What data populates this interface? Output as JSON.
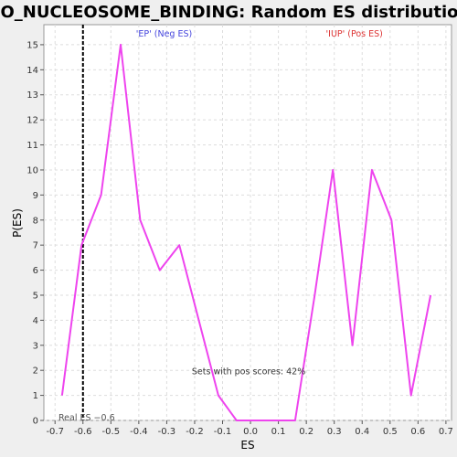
{
  "chart_data": {
    "type": "line",
    "title": "GO_NUCLEOSOME_BINDING: Random ES distribution",
    "xlabel": "ES",
    "ylabel": "P(ES)",
    "xlim": [
      -0.74,
      0.72
    ],
    "ylim": [
      0,
      15.8
    ],
    "x_ticks": [
      -0.7,
      -0.6,
      -0.5,
      -0.4,
      -0.3,
      -0.2,
      -0.1,
      0.0,
      0.1,
      0.2,
      0.3,
      0.4,
      0.5,
      0.6,
      0.7
    ],
    "x_tick_labels": [
      "-0.7",
      "-0.6",
      "-0.5",
      "-0.4",
      "-0.3",
      "-0.2",
      "-0.1",
      "0.0",
      "0.1",
      "0.2",
      "0.3",
      "0.4",
      "0.5",
      "0.6",
      "0.7"
    ],
    "y_ticks": [
      0,
      1,
      2,
      3,
      4,
      5,
      6,
      7,
      8,
      9,
      10,
      11,
      12,
      13,
      14,
      15
    ],
    "y_tick_labels": [
      "0",
      "1",
      "2",
      "3",
      "4",
      "5",
      "6",
      "7",
      "8",
      "9",
      "10",
      "11",
      "12",
      "13",
      "14",
      "15"
    ],
    "grid": true,
    "series": [
      {
        "color": "#ee44ee",
        "x": [
          -0.675,
          -0.605,
          -0.535,
          -0.465,
          -0.395,
          -0.325,
          -0.255,
          -0.185,
          -0.115,
          -0.05,
          0.02,
          0.095,
          0.16,
          0.23,
          0.295,
          0.365,
          0.435,
          0.505,
          0.575,
          0.645
        ],
        "y": [
          1,
          7,
          9,
          15,
          8,
          6,
          7,
          4,
          1,
          0,
          0,
          0,
          0,
          5,
          10,
          3,
          10,
          8,
          1,
          5
        ]
      }
    ],
    "real_es": {
      "value": -0.6,
      "label": "Real ES −0.6",
      "color": "#000000"
    },
    "annotations": {
      "neg": {
        "text": "'EP' (Neg ES)",
        "color": "#4444dd"
      },
      "pos": {
        "text": "'IUP' (Pos ES)",
        "color": "#dd3333"
      },
      "pos_scores": {
        "text": "Sets with pos scores: 42%",
        "color": "#333333"
      }
    }
  }
}
